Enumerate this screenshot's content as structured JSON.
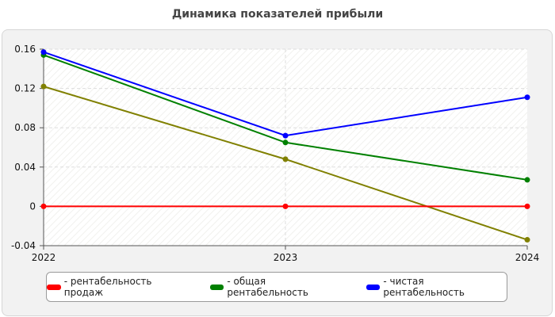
{
  "chart_data": {
    "type": "line",
    "title": "Динамика показателей прибыли",
    "categories": [
      "2022",
      "2023",
      "2024"
    ],
    "ylim": [
      -0.04,
      0.16
    ],
    "yticks": [
      -0.04,
      0,
      0.04,
      0.08,
      0.12,
      0.16
    ],
    "ytick_labels": [
      "-0.04",
      "0",
      "0.04",
      "0.08",
      "0.12",
      "0.16"
    ],
    "grid": true,
    "legend_position": "bottom",
    "series": [
      {
        "name": "- рентабельность продаж",
        "color": "#ff0000",
        "values": [
          0,
          0,
          0
        ]
      },
      {
        "name": "- общая рентабельность",
        "color": "#008000",
        "values": [
          0.154,
          0.065,
          0.027
        ]
      },
      {
        "name": "- чистая рентабельность",
        "color": "#0000ff",
        "values": [
          0.157,
          0.072,
          0.111
        ]
      },
      {
        "name": "",
        "color": "#808000",
        "values": [
          0.122,
          0.048,
          -0.034
        ]
      }
    ]
  }
}
